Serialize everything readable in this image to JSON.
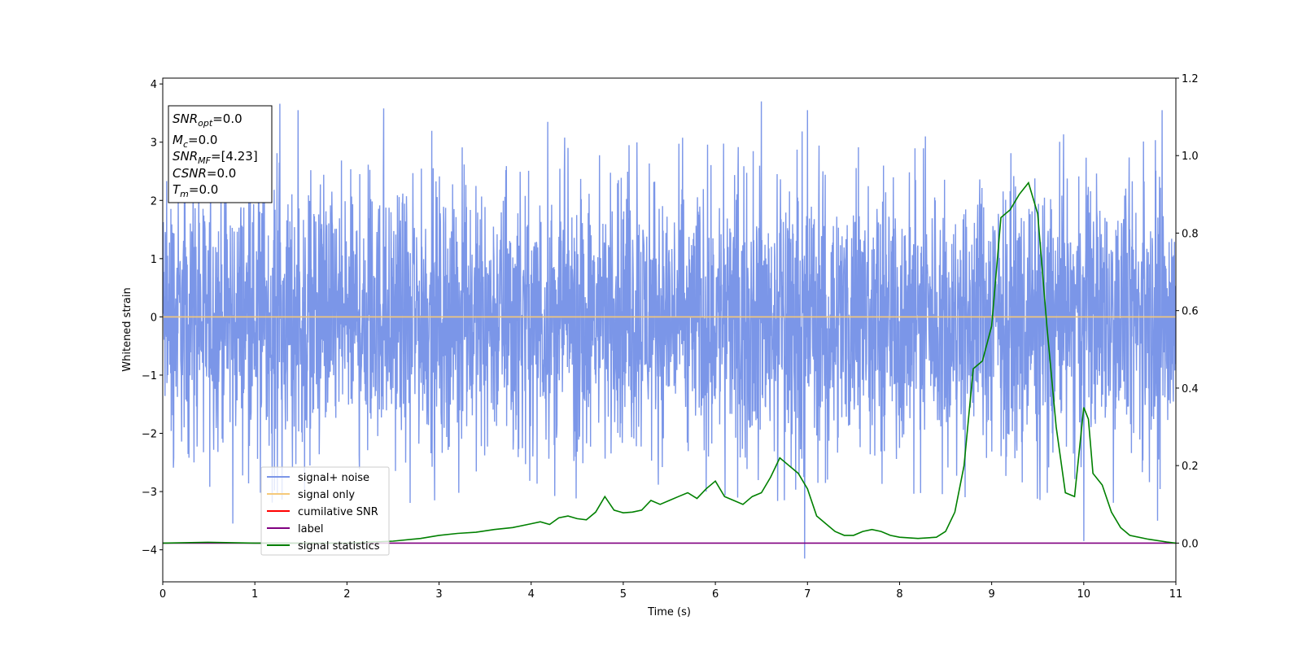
{
  "chart_data": {
    "type": "line",
    "xlabel": "Time (s)",
    "ylabel_left": "Whitened strain",
    "ylabel_right": "",
    "xlim": [
      0,
      11
    ],
    "ylim_left": [
      -4.55,
      4.1
    ],
    "ylim_right": [
      -0.1,
      1.2
    ],
    "x_ticks": [
      "0",
      "1",
      "2",
      "3",
      "4",
      "5",
      "6",
      "7",
      "8",
      "9",
      "10",
      "11"
    ],
    "y_ticks_left": [
      "4",
      "3",
      "2",
      "1",
      "0",
      "−1",
      "−2",
      "−3",
      "−4"
    ],
    "y_ticks_left_values": [
      4,
      3,
      2,
      1,
      0,
      -1,
      -2,
      -3,
      -4
    ],
    "y_ticks_right": [
      "1.2",
      "1.0",
      "0.8",
      "0.6",
      "0.4",
      "0.2",
      "0.0"
    ],
    "y_ticks_right_values": [
      1.2,
      1.0,
      0.8,
      0.6,
      0.4,
      0.2,
      0.0
    ],
    "grid": false,
    "legend_position": "lower-left",
    "info_box": {
      "lines": [
        {
          "var": "SNR",
          "sub": "opt",
          "value": "=0.0"
        },
        {
          "var": "M",
          "sub": "c",
          "value": "=0.0"
        },
        {
          "var": "SNR",
          "sub": "MF",
          "value": "=[4.23]"
        },
        {
          "var": "CSNR",
          "sub": "",
          "value": "=0.0"
        },
        {
          "var": "T",
          "sub": "m",
          "value": "=0.0"
        }
      ]
    },
    "series": [
      {
        "name": "signal+ noise",
        "axis": "left",
        "color": "#7b96e8",
        "style": "noise",
        "noise_range": [
          -2.2,
          2.1
        ],
        "spikes": [
          {
            "x": 0.76,
            "y": -3.55
          },
          {
            "x": 1.27,
            "y": 3.66
          },
          {
            "x": 1.47,
            "y": 3.55
          },
          {
            "x": 2.4,
            "y": 3.58
          },
          {
            "x": 4.18,
            "y": 3.35
          },
          {
            "x": 5.9,
            "y": -3.0
          },
          {
            "x": 6.5,
            "y": 3.7
          },
          {
            "x": 6.97,
            "y": -4.15
          },
          {
            "x": 7.0,
            "y": 3.55
          },
          {
            "x": 10.0,
            "y": -3.85
          },
          {
            "x": 10.8,
            "y": -3.5
          },
          {
            "x": 10.85,
            "y": 3.55
          }
        ]
      },
      {
        "name": "signal only",
        "axis": "left",
        "color": "#f5c97a",
        "x": [
          0,
          11
        ],
        "y": [
          0,
          0
        ]
      },
      {
        "name": "cumilative SNR",
        "axis": "left",
        "color": "#ff0000",
        "x": [],
        "y": []
      },
      {
        "name": "label",
        "axis": "right",
        "color": "#800080",
        "x": [
          0,
          11
        ],
        "y": [
          0,
          0
        ]
      },
      {
        "name": "signal statistics",
        "axis": "right",
        "color": "#008000",
        "x": [
          0,
          0.5,
          1.0,
          1.5,
          2.0,
          2.5,
          2.8,
          3.0,
          3.2,
          3.4,
          3.6,
          3.8,
          4.0,
          4.1,
          4.2,
          4.3,
          4.4,
          4.5,
          4.6,
          4.7,
          4.8,
          4.9,
          5.0,
          5.1,
          5.2,
          5.3,
          5.4,
          5.5,
          5.6,
          5.7,
          5.8,
          5.9,
          6.0,
          6.1,
          6.2,
          6.3,
          6.4,
          6.5,
          6.6,
          6.7,
          6.8,
          6.9,
          7.0,
          7.1,
          7.2,
          7.3,
          7.4,
          7.5,
          7.6,
          7.7,
          7.8,
          7.9,
          8.0,
          8.2,
          8.4,
          8.5,
          8.6,
          8.7,
          8.8,
          8.9,
          9.0,
          9.1,
          9.2,
          9.3,
          9.4,
          9.5,
          9.6,
          9.7,
          9.8,
          9.9,
          10.0,
          10.05,
          10.1,
          10.2,
          10.3,
          10.4,
          10.5,
          10.7,
          10.9,
          11.0
        ],
        "y": [
          0.0,
          0.002,
          0.0,
          0.0,
          0.0,
          0.005,
          0.012,
          0.02,
          0.025,
          0.028,
          0.035,
          0.04,
          0.05,
          0.055,
          0.048,
          0.065,
          0.07,
          0.063,
          0.06,
          0.08,
          0.12,
          0.085,
          0.078,
          0.08,
          0.085,
          0.11,
          0.1,
          0.11,
          0.12,
          0.13,
          0.115,
          0.14,
          0.16,
          0.12,
          0.11,
          0.1,
          0.12,
          0.13,
          0.17,
          0.22,
          0.2,
          0.18,
          0.14,
          0.07,
          0.05,
          0.03,
          0.02,
          0.02,
          0.03,
          0.035,
          0.03,
          0.02,
          0.015,
          0.012,
          0.015,
          0.03,
          0.08,
          0.2,
          0.45,
          0.47,
          0.56,
          0.84,
          0.86,
          0.9,
          0.93,
          0.85,
          0.56,
          0.3,
          0.13,
          0.12,
          0.35,
          0.32,
          0.18,
          0.15,
          0.08,
          0.04,
          0.02,
          0.01,
          0.003,
          0.0
        ]
      }
    ]
  }
}
